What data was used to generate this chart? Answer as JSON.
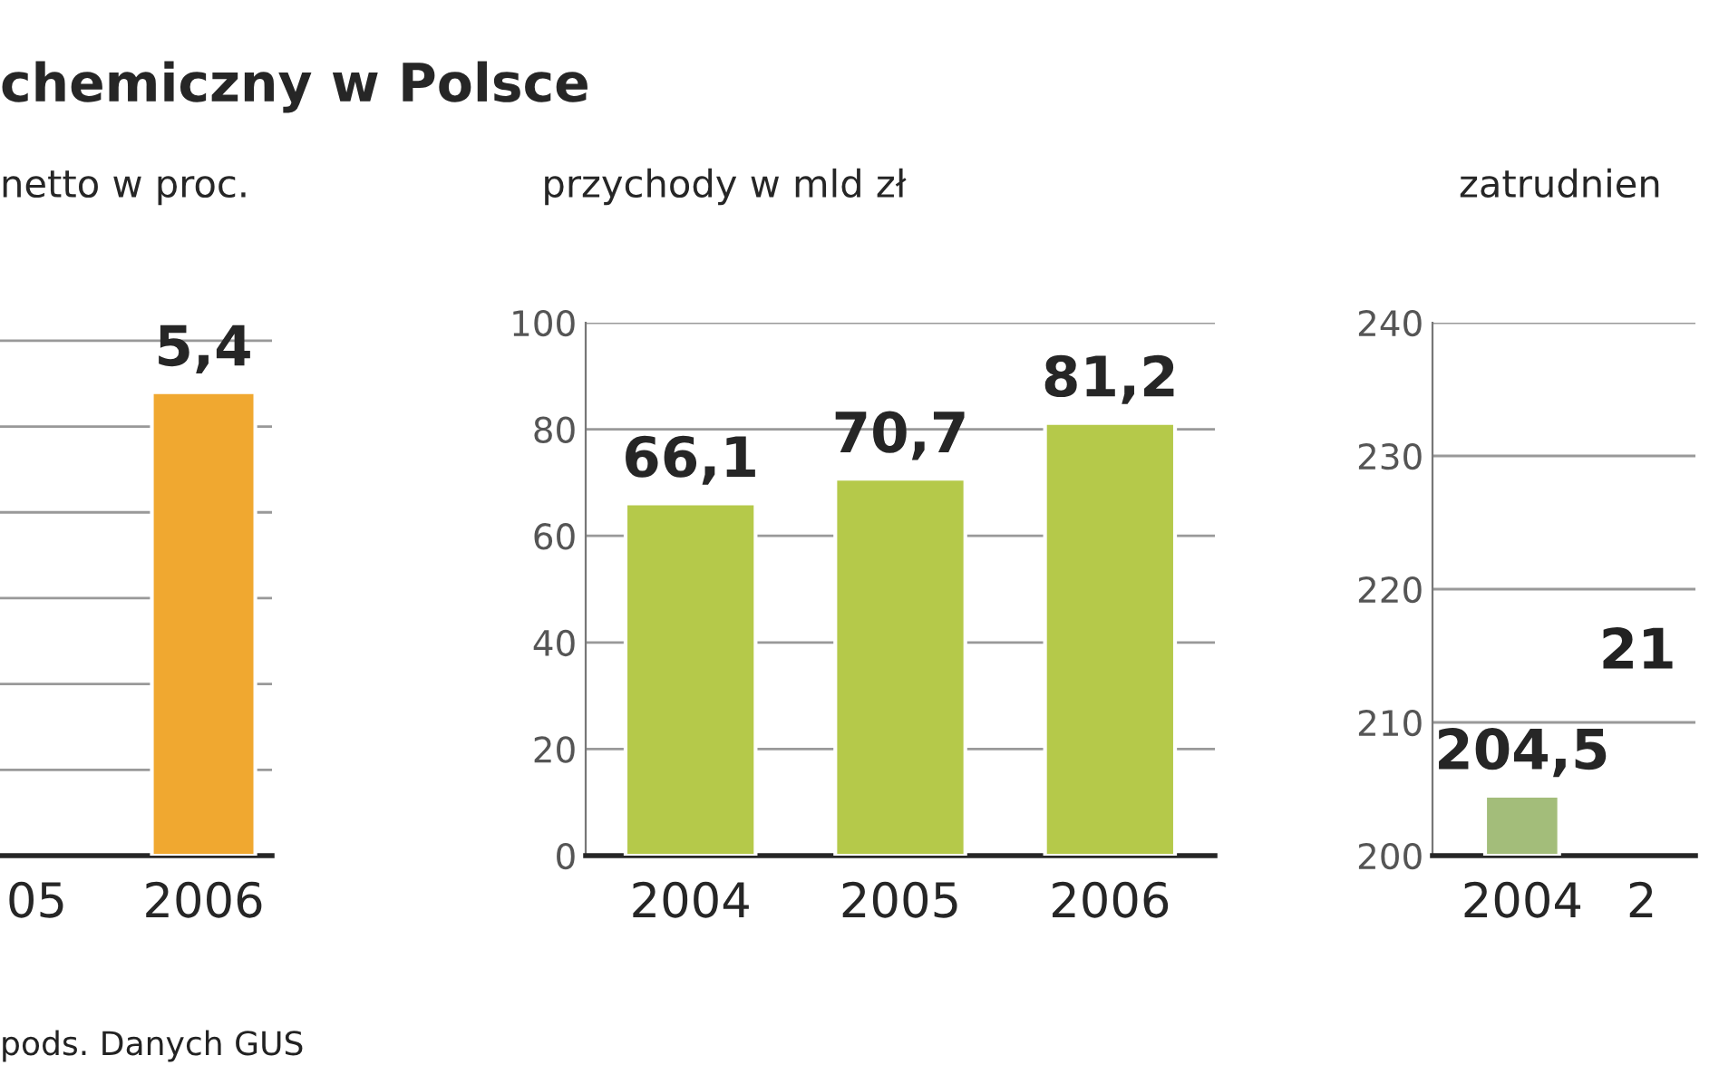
{
  "chart_data": [
    {
      "type": "bar",
      "title": "chemiczny w Polsce",
      "subtitle": "netto w proc.",
      "categories": [
        "05",
        "2006"
      ],
      "values": [
        null,
        5.4
      ],
      "value_labels": [
        null,
        "5,4"
      ],
      "color": "#f0a830",
      "grid": "y",
      "tick_labels": "x",
      "annotations": [
        "pods. Danych GUS"
      ]
    },
    {
      "type": "bar",
      "subtitle": "przychody w mld zł",
      "categories": [
        "2004",
        "2005",
        "2006"
      ],
      "values": [
        66.1,
        70.7,
        81.2
      ],
      "value_labels": [
        "66,1",
        "70,7",
        "81,2"
      ],
      "color": "#b5c94a",
      "ylim": [
        0,
        100
      ],
      "yticks": [
        0,
        20,
        40,
        60,
        80,
        100
      ],
      "grid": "y"
    },
    {
      "type": "bar",
      "subtitle": "zatrudnien",
      "categories": [
        "2004",
        "2"
      ],
      "values": [
        204.5,
        null
      ],
      "value_labels": [
        "204,5",
        null
      ],
      "color": "#a3bd7a",
      "ylim": [
        200,
        240
      ],
      "yticks": [
        200,
        210,
        220,
        230,
        240
      ],
      "grid": "y",
      "annotations": [
        "21"
      ]
    }
  ]
}
